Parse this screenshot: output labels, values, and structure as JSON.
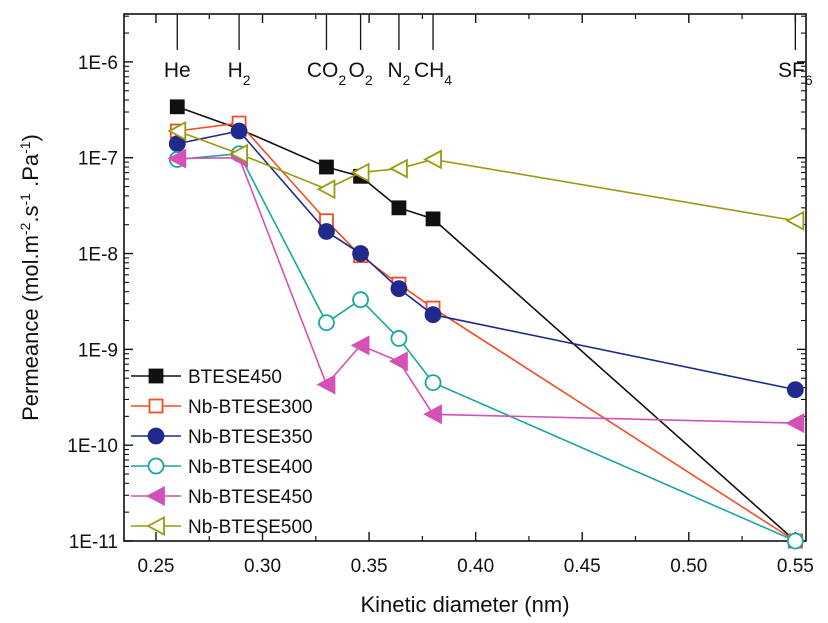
{
  "chart_data": {
    "type": "line",
    "title": "",
    "xlabel": "Kinetic diameter (nm)",
    "ylabel": "Permeance (mol.m⁻².s⁻¹.Pa⁻¹)",
    "ylabel_parts": {
      "base": "Permeance (mol.m",
      "exp1": "-2",
      "mid1": ".s",
      "exp2": "-1",
      "mid2": " .Pa",
      "exp3": "-1",
      "end": ")"
    },
    "xlim": [
      0.235,
      0.555
    ],
    "ylim_log10": [
      -11,
      -5.5
    ],
    "yscale": "log",
    "x_ticks": [
      "0.25",
      "0.30",
      "0.35",
      "0.40",
      "0.45",
      "0.50",
      "0.55"
    ],
    "x_tick_values": [
      0.25,
      0.3,
      0.35,
      0.4,
      0.45,
      0.5,
      0.55
    ],
    "y_ticks": [
      "1E-11",
      "1E-10",
      "1E-9",
      "1E-8",
      "1E-7",
      "1E-6"
    ],
    "y_tick_exponents": [
      -11,
      -10,
      -9,
      -8,
      -7,
      -6
    ],
    "gas_labels": [
      {
        "x": 0.26,
        "text": "He",
        "sub": ""
      },
      {
        "x": 0.289,
        "text": "H",
        "sub": "2"
      },
      {
        "x": 0.33,
        "text": "CO",
        "sub": "2"
      },
      {
        "x": 0.346,
        "text": "O",
        "sub": "2"
      },
      {
        "x": 0.364,
        "text": "N",
        "sub": "2"
      },
      {
        "x": 0.38,
        "text": "CH",
        "sub": "4"
      },
      {
        "x": 0.55,
        "text": "SF",
        "sub": "6"
      }
    ],
    "legend_position": "lower-left",
    "series": [
      {
        "name": "BTESE450",
        "color": "#111111",
        "marker": "square-filled",
        "x": [
          0.26,
          0.289,
          0.33,
          0.346,
          0.364,
          0.38,
          0.55
        ],
        "y": [
          3.4e-07,
          2e-07,
          8e-08,
          6.4e-08,
          3e-08,
          2.3e-08,
          1e-11
        ]
      },
      {
        "name": "Nb-BTESE300",
        "color": "#f04e23",
        "marker": "square-open",
        "x": [
          0.26,
          0.289,
          0.33,
          0.346,
          0.364,
          0.38,
          0.55
        ],
        "y": [
          1.9e-07,
          2.3e-07,
          2.2e-08,
          9.5e-09,
          4.8e-09,
          2.7e-09,
          1e-11
        ]
      },
      {
        "name": "Nb-BTESE350",
        "color": "#1f2a8c",
        "marker": "circle-filled",
        "x": [
          0.26,
          0.289,
          0.33,
          0.346,
          0.364,
          0.38,
          0.55
        ],
        "y": [
          1.4e-07,
          1.9e-07,
          1.7e-08,
          1e-08,
          4.3e-09,
          2.3e-09,
          3.8e-10
        ]
      },
      {
        "name": "Nb-BTESE400",
        "color": "#1aa6a0",
        "marker": "circle-open",
        "x": [
          0.26,
          0.289,
          0.33,
          0.346,
          0.364,
          0.38,
          0.55
        ],
        "y": [
          9.6e-08,
          1.1e-07,
          1.9e-09,
          3.3e-09,
          1.3e-09,
          4.5e-10,
          1e-11
        ]
      },
      {
        "name": "Nb-BTESE450",
        "color": "#d451b7",
        "marker": "triangle-left-filled",
        "x": [
          0.26,
          0.289,
          0.33,
          0.346,
          0.364,
          0.38,
          0.55
        ],
        "y": [
          9.8e-08,
          1e-07,
          4.3e-10,
          1.1e-09,
          7.5e-10,
          2.1e-10,
          1.7e-10
        ]
      },
      {
        "name": "Nb-BTESE500",
        "color": "#9a9a10",
        "marker": "triangle-left-open",
        "x": [
          0.26,
          0.289,
          0.33,
          0.346,
          0.364,
          0.38,
          0.55
        ],
        "y": [
          1.9e-07,
          1.1e-07,
          4.7e-08,
          7e-08,
          7.7e-08,
          9.6e-08,
          2.2e-08
        ]
      }
    ]
  }
}
